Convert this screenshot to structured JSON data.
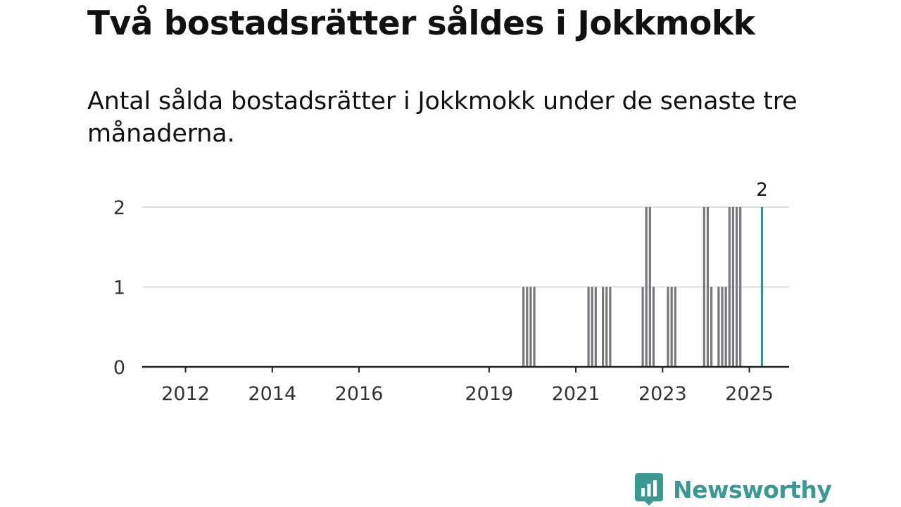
{
  "header": {
    "title": "Två bostadsrätter såldes i Jokkmokk",
    "subtitle": "Antal sålda bostadsrätter i Jokkmokk under de senaste tre månaderna."
  },
  "brand": {
    "name": "Newsworthy",
    "color": "#3a9a93",
    "icon": "newsworthy-logo-icon"
  },
  "colors": {
    "bar": "#78777c",
    "highlight": "#1a9c92",
    "grid": "#dddddd",
    "axis": "#222222",
    "text": "#333333"
  },
  "chart_data": {
    "type": "bar",
    "title": "Två bostadsrätter såldes i Jokkmokk",
    "subtitle": "Antal sålda bostadsrätter i Jokkmokk under de senaste tre månaderna.",
    "xlabel": "",
    "ylabel": "",
    "x_range": [
      "2011-07",
      "2026-06"
    ],
    "ylim": [
      0,
      2
    ],
    "y_ticks": [
      0,
      1,
      2
    ],
    "x_ticks": [
      "2012",
      "2014",
      "2016",
      "2019",
      "2021",
      "2023",
      "2025"
    ],
    "grid": true,
    "legend": "none",
    "bars": [
      {
        "date": "2020-04",
        "value": 1
      },
      {
        "date": "2020-05",
        "value": 1
      },
      {
        "date": "2020-06",
        "value": 1
      },
      {
        "date": "2020-07",
        "value": 1
      },
      {
        "date": "2021-10",
        "value": 1
      },
      {
        "date": "2021-11",
        "value": 1
      },
      {
        "date": "2021-12",
        "value": 1
      },
      {
        "date": "2022-02",
        "value": 1
      },
      {
        "date": "2022-03",
        "value": 1
      },
      {
        "date": "2022-04",
        "value": 1
      },
      {
        "date": "2023-01",
        "value": 1
      },
      {
        "date": "2023-02",
        "value": 2
      },
      {
        "date": "2023-03",
        "value": 2
      },
      {
        "date": "2023-04",
        "value": 1
      },
      {
        "date": "2023-08",
        "value": 1
      },
      {
        "date": "2023-09",
        "value": 1
      },
      {
        "date": "2023-10",
        "value": 1
      },
      {
        "date": "2024-06",
        "value": 2
      },
      {
        "date": "2024-07",
        "value": 2
      },
      {
        "date": "2024-08",
        "value": 1
      },
      {
        "date": "2024-10",
        "value": 1
      },
      {
        "date": "2024-11",
        "value": 1
      },
      {
        "date": "2024-12",
        "value": 1
      },
      {
        "date": "2025-01",
        "value": 2
      },
      {
        "date": "2025-02",
        "value": 2
      },
      {
        "date": "2025-03",
        "value": 2
      },
      {
        "date": "2025-04",
        "value": 2
      }
    ],
    "highlight": {
      "date": "2025-10",
      "value": 2,
      "label": "2"
    }
  }
}
